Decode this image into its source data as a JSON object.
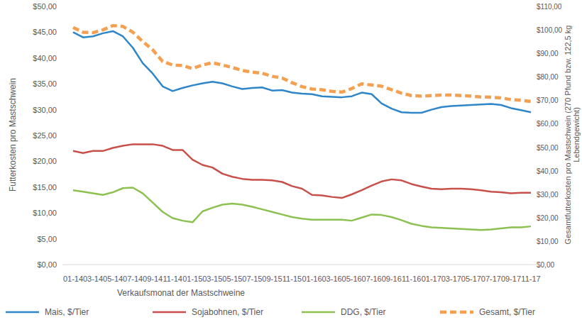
{
  "chart_data": {
    "type": "line",
    "x_label": "Verkaufsmonat der Mastschweine",
    "y_label": "Futterkosten pro Mastschwein",
    "y2_label": [
      "Gesamtfutterkosten pro Mastschwein (270 Pfund bzw. 122,5 kg",
      "Lebendgewicht)"
    ],
    "categories": [
      "01-14",
      null,
      "03-14",
      null,
      "05-14",
      null,
      "07-14",
      null,
      "09-14",
      null,
      "11-14",
      null,
      "01-15",
      null,
      "03-15",
      null,
      "05-15",
      null,
      "07-15",
      null,
      "09-15",
      null,
      "11-15",
      null,
      "01-16",
      null,
      "03-16",
      null,
      "05-16",
      null,
      "07-16",
      null,
      "09-16",
      null,
      "11-16",
      null,
      "01-17",
      null,
      "03-17",
      null,
      "05-17",
      null,
      "07-17",
      null,
      "09-17",
      null,
      "11-17"
    ],
    "ylim": [
      0,
      50
    ],
    "yticks": [
      {
        "value": 0,
        "label": "$0,00"
      },
      {
        "value": 5,
        "label": "$5,00"
      },
      {
        "value": 10,
        "label": "$10,00"
      },
      {
        "value": 15,
        "label": "$15,00"
      },
      {
        "value": 20,
        "label": "$20,00"
      },
      {
        "value": 25,
        "label": "$25,00"
      },
      {
        "value": 30,
        "label": "$30,00"
      },
      {
        "value": 35,
        "label": "$35,00"
      },
      {
        "value": 40,
        "label": "$40,00"
      },
      {
        "value": 45,
        "label": "$45,00"
      },
      {
        "value": 50,
        "label": "$50,00"
      }
    ],
    "y2lim": [
      0,
      110
    ],
    "y2ticks": [
      {
        "value": 0,
        "label": "$0,00"
      },
      {
        "value": 10,
        "label": "$10,00"
      },
      {
        "value": 20,
        "label": "$20,00"
      },
      {
        "value": 30,
        "label": "$30,00"
      },
      {
        "value": 40,
        "label": "$40,00"
      },
      {
        "value": 50,
        "label": "$50,00"
      },
      {
        "value": 60,
        "label": "$60,00"
      },
      {
        "value": 70,
        "label": "$70,00"
      },
      {
        "value": 80,
        "label": "$80,00"
      },
      {
        "value": 90,
        "label": "$90,00"
      },
      {
        "value": 100,
        "label": "$100,00"
      },
      {
        "value": 110,
        "label": "$110,00"
      }
    ],
    "grid": false,
    "legend": "bottom",
    "series": [
      {
        "name": "Mais, $/Tier",
        "color": "#2e86c9",
        "line_style": "solid",
        "values": [
          45.0,
          44.0,
          44.2,
          44.8,
          45.2,
          44.2,
          42.0,
          39.0,
          37.0,
          34.5,
          33.6,
          34.2,
          34.7,
          35.1,
          35.4,
          35.1,
          34.5,
          34.0,
          34.2,
          34.3,
          33.7,
          33.8,
          33.3,
          33.1,
          33.0,
          32.6,
          32.5,
          32.4,
          32.6,
          33.3,
          33.0,
          31.2,
          30.2,
          29.5,
          29.4,
          29.4,
          30.0,
          30.5,
          30.7,
          30.8,
          30.9,
          31.0,
          31.1,
          30.9,
          30.3,
          29.9,
          29.5
        ]
      },
      {
        "name": "Sojabohnen, $/Tier",
        "color": "#c9504a",
        "line_style": "solid",
        "values": [
          22.0,
          21.6,
          22.0,
          22.0,
          22.6,
          23.0,
          23.3,
          23.3,
          23.3,
          23.0,
          22.2,
          22.2,
          20.3,
          19.3,
          18.8,
          17.6,
          17.0,
          16.6,
          16.4,
          16.4,
          16.3,
          16.0,
          15.2,
          14.7,
          13.5,
          13.4,
          13.1,
          12.9,
          13.6,
          14.4,
          15.3,
          16.1,
          16.5,
          16.3,
          15.6,
          15.1,
          14.7,
          14.6,
          14.7,
          14.7,
          14.6,
          14.4,
          14.1,
          14.0,
          13.8,
          13.9,
          13.9
        ]
      },
      {
        "name": "DDG, $/Tier",
        "color": "#8cc152",
        "line_style": "solid",
        "values": [
          14.4,
          14.1,
          13.8,
          13.5,
          14.0,
          14.8,
          14.9,
          13.8,
          12.0,
          10.2,
          9.0,
          8.5,
          8.2,
          10.3,
          11.0,
          11.6,
          11.8,
          11.6,
          11.2,
          10.7,
          10.2,
          9.7,
          9.2,
          8.9,
          8.7,
          8.7,
          8.7,
          8.7,
          8.5,
          9.1,
          9.7,
          9.6,
          9.2,
          8.6,
          7.9,
          7.5,
          7.2,
          7.1,
          7.0,
          6.9,
          6.8,
          6.7,
          6.8,
          7.0,
          7.2,
          7.2,
          7.4
        ]
      },
      {
        "name": "Gesamt, $/Tier",
        "color": "#f5a050",
        "line_style": "dashed",
        "axis": "y2",
        "values": [
          101.0,
          99.0,
          98.8,
          100.0,
          101.8,
          101.5,
          99.0,
          95.0,
          91.5,
          86.5,
          85.0,
          84.8,
          83.5,
          85.0,
          86.0,
          85.0,
          84.0,
          82.7,
          82.0,
          81.5,
          80.2,
          79.5,
          77.5,
          75.8,
          74.8,
          74.5,
          73.8,
          73.5,
          75.0,
          77.0,
          76.5,
          76.0,
          74.5,
          73.0,
          72.0,
          71.8,
          72.0,
          72.2,
          72.2,
          72.0,
          71.8,
          71.4,
          71.3,
          71.0,
          70.3,
          70.0,
          69.5
        ]
      }
    ]
  }
}
